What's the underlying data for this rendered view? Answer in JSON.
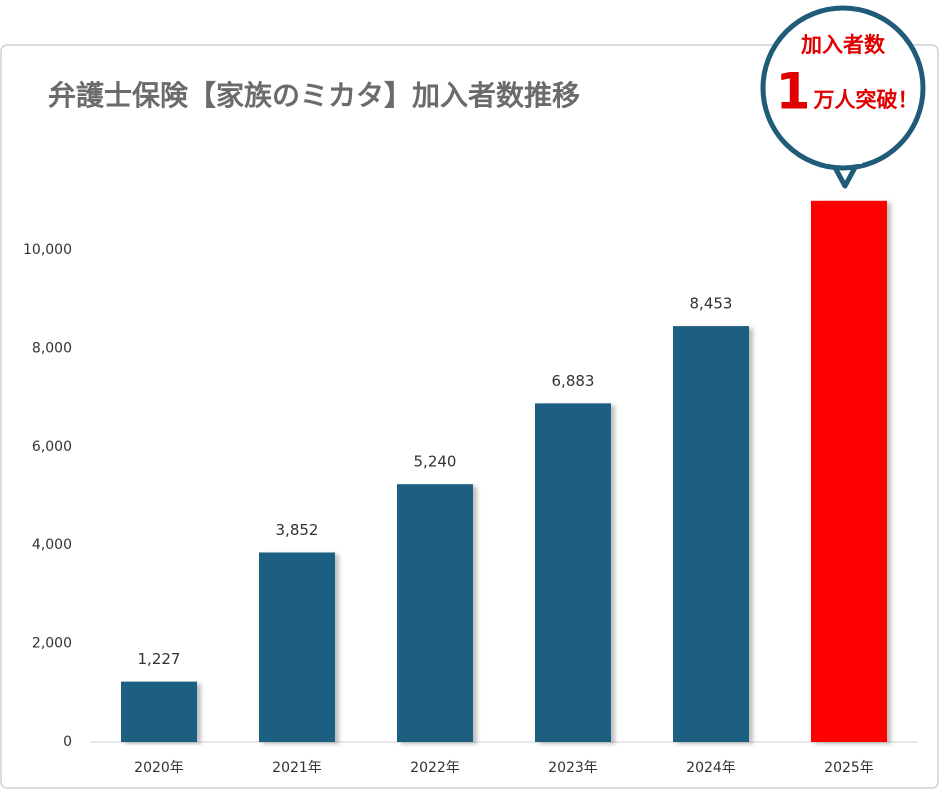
{
  "chart_data": {
    "type": "bar",
    "title": "弁護士保険【家族のミカタ】加入者数推移",
    "categories": [
      "2020年",
      "2021年",
      "2022年",
      "2023年",
      "2024年",
      "2025年"
    ],
    "values": [
      1227,
      3852,
      5240,
      6883,
      8453,
      11000
    ],
    "value_labels": [
      "1,227",
      "3,852",
      "5,240",
      "6,883",
      "8,453",
      null
    ],
    "colors": [
      "#1a5e80",
      "#1a5e80",
      "#1a5e80",
      "#1a5e80",
      "#1a5e80",
      "#ff0000"
    ],
    "ylim": [
      0,
      12000
    ],
    "yticks": [
      0,
      {
        "value": 2000,
        "label": "2,000"
      },
      {
        "value": 4000,
        "label": "4,000"
      },
      {
        "value": 6000,
        "label": "6,000"
      },
      {
        "value": 8000,
        "label": "8,000"
      },
      {
        "value": 10000,
        "label": "10,000"
      }
    ],
    "grid": false,
    "callout": {
      "line1": "加入者数",
      "number": "1",
      "line2": "万人突破！"
    }
  }
}
